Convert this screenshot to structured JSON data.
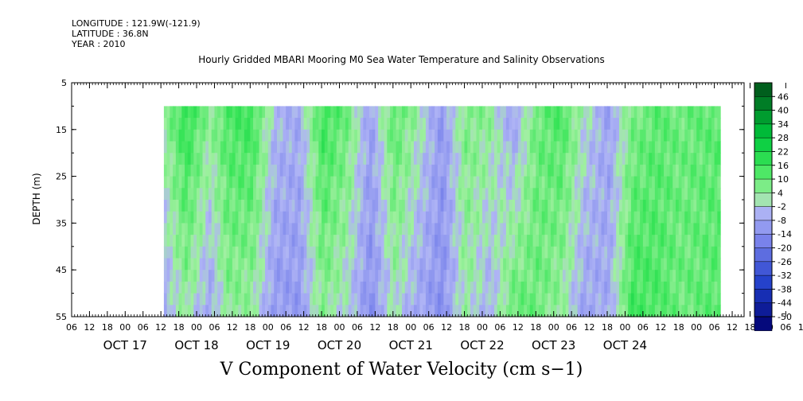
{
  "header": {
    "longitude": "LONGITUDE : 121.9W(-121.9)",
    "latitude": "LATITUDE : 36.8N",
    "year": "YEAR : 2010"
  },
  "chart_data": {
    "type": "heatmap",
    "title": "Hourly Gridded MBARI Mooring M0 Sea Water Temperature and Salinity Observations",
    "variable_label": "V Component of Water Velocity (cm s−1)",
    "ylabel": "DEPTH (m)",
    "ylim": [
      5,
      55
    ],
    "y_inverted": true,
    "y_ticks": [
      5,
      15,
      25,
      35,
      45,
      55
    ],
    "data_depth_range": [
      10,
      55
    ],
    "x_hour_ticks": [
      "06",
      "12",
      "18",
      "00",
      "06",
      "12",
      "18",
      "00",
      "06",
      "12",
      "18",
      "00",
      "06",
      "12",
      "18",
      "00",
      "06",
      "12",
      "18",
      "00",
      "06",
      "12",
      "18",
      "00",
      "06",
      "12",
      "18",
      "00",
      "06",
      "12",
      "18",
      "00",
      "06",
      "12",
      "18",
      "00",
      "06",
      "12",
      "18",
      "00",
      "06",
      "12",
      "18",
      "00",
      "06"
    ],
    "x_date_labels": [
      "OCT 17",
      "OCT 18",
      "OCT 19",
      "OCT 20",
      "OCT 21",
      "OCT 22",
      "OCT 23",
      "OCT 24"
    ],
    "data_time_start_hours_after_oct17_00": 13,
    "colorbar": {
      "levels": [
        46,
        40,
        34,
        28,
        22,
        16,
        10,
        4,
        -2,
        -8,
        -14,
        -20,
        -26,
        -32,
        -38,
        -44,
        -50
      ],
      "min": -50,
      "max": 50,
      "colors": {
        "dark_green": "#004d1a",
        "bright_green": "#00e040",
        "light_green": "#99f099",
        "light_blue": "#aab0f4",
        "mid_blue": "#4060e0",
        "dark_blue": "#000070"
      }
    },
    "temporal_profile": {
      "description_hours": [
        13,
        20,
        28,
        34,
        42,
        50,
        58,
        66,
        74,
        82,
        90,
        98,
        106,
        114,
        122,
        130,
        138,
        146,
        154,
        162,
        170,
        178,
        186,
        198
      ],
      "v_surface": [
        6,
        18,
        6,
        14,
        16,
        -2,
        -4,
        16,
        10,
        -6,
        12,
        4,
        -8,
        8,
        6,
        -6,
        10,
        14,
        2,
        -6,
        8,
        12,
        10,
        12
      ],
      "v_bottom": [
        -4,
        4,
        -6,
        6,
        4,
        -8,
        -8,
        6,
        0,
        -10,
        2,
        -6,
        -10,
        4,
        -4,
        12,
        10,
        4,
        -6,
        -4,
        16,
        14,
        10,
        12
      ]
    }
  }
}
